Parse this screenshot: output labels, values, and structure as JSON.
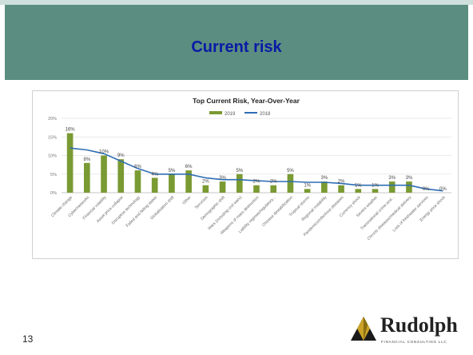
{
  "slide": {
    "title": "Current risk",
    "page_number": "13"
  },
  "logo": {
    "name": "Rudolph",
    "tagline": "FINANCIAL CONSULTING LLC"
  },
  "colors": {
    "header": "#5b8e80",
    "title_text": "#0a1aa6",
    "bar_2019": "#7a9a33",
    "line_2018": "#2e6db4"
  },
  "chart_data": {
    "type": "bar",
    "title": "Top Current Risk, Year-Over-Year",
    "ylim": [
      0,
      20
    ],
    "yticks": [
      0,
      5,
      10,
      15,
      20
    ],
    "ytick_labels": [
      "0%",
      "5%",
      "10%",
      "15%",
      "20%"
    ],
    "grid": true,
    "legend_position": "top-center",
    "categories": [
      "Climate change",
      "Cyber/networks",
      "Financial volatility",
      "Asset price collapse",
      "Disruptive technology",
      "Failed and failing states",
      "Globalisation shift",
      "Other",
      "Terrorism",
      "Demographic shift",
      "Wars (including civil wars)",
      "Weapons of mass destruction",
      "Liability regimes/regulatory...",
      "Chinese destabilization",
      "Tropical storms",
      "Regional instability",
      "Pandemics/infectious diseases",
      "Currency shock",
      "Severe weather",
      "Transnational crime and...",
      "Chronic diseases/medical delivery",
      "Loss of freshwater services",
      "Energy price shock"
    ],
    "series": [
      {
        "name": "2019",
        "type": "bar",
        "values": [
          16,
          8,
          10,
          9,
          6,
          4,
          5,
          6,
          2,
          3,
          5,
          2,
          2,
          5,
          1,
          3,
          2,
          1,
          1,
          3,
          3,
          0,
          0
        ],
        "labels": [
          "16%",
          "8%",
          "10%",
          "9%",
          "6%",
          "4%",
          "5%",
          "6%",
          "2%",
          "3%",
          "5%",
          "2%",
          "2%",
          "5%",
          "1%",
          "3%",
          "2%",
          "1%",
          "1%",
          "3%",
          "3%",
          "0%",
          "0%"
        ]
      },
      {
        "name": "2018",
        "type": "line",
        "values": [
          12,
          11.5,
          10.5,
          8.5,
          6.5,
          5,
          5,
          5,
          4,
          3.5,
          3.5,
          3.2,
          3,
          3,
          2.8,
          2.8,
          2.5,
          2,
          2,
          2,
          2,
          1,
          0.5
        ]
      }
    ]
  }
}
